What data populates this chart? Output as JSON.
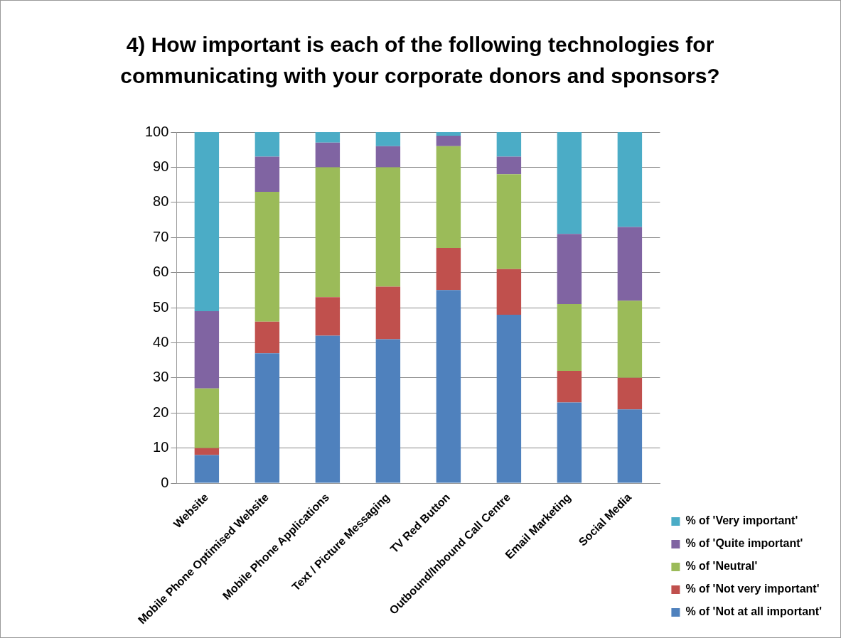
{
  "chart_data": {
    "type": "bar",
    "stacked": true,
    "title": "4) How important is each of the following technologies for communicating with your corporate donors and sponsors?",
    "categories": [
      "Website",
      "Mobile Phone Optimised Website",
      "Mobile Phone Applications",
      "Text / Picture Messaging",
      "TV Red Button",
      "Outbound/Inbound Call Centre",
      "Email Marketing",
      "Social Media"
    ],
    "series": [
      {
        "name": "% of 'Not at all important'",
        "color": "#4f81bd",
        "values": [
          8,
          37,
          42,
          41,
          55,
          48,
          23,
          21
        ]
      },
      {
        "name": "% of 'Not very important'",
        "color": "#c0504d",
        "values": [
          2,
          9,
          11,
          15,
          12,
          13,
          9,
          9
        ]
      },
      {
        "name": "% of 'Neutral'",
        "color": "#9bbb59",
        "values": [
          17,
          37,
          37,
          34,
          29,
          27,
          19,
          22
        ]
      },
      {
        "name": "% of 'Quite important'",
        "color": "#8064a2",
        "values": [
          22,
          10,
          7,
          6,
          3,
          5,
          20,
          21
        ]
      },
      {
        "name": "% of 'Very important'",
        "color": "#4bacc6",
        "values": [
          51,
          7,
          3,
          4,
          1,
          7,
          29,
          27
        ]
      }
    ],
    "ylim": [
      0,
      100
    ],
    "yticks": [
      0,
      10,
      20,
      30,
      40,
      50,
      60,
      70,
      80,
      90,
      100
    ],
    "grid": "y",
    "legend": "bottom right"
  }
}
